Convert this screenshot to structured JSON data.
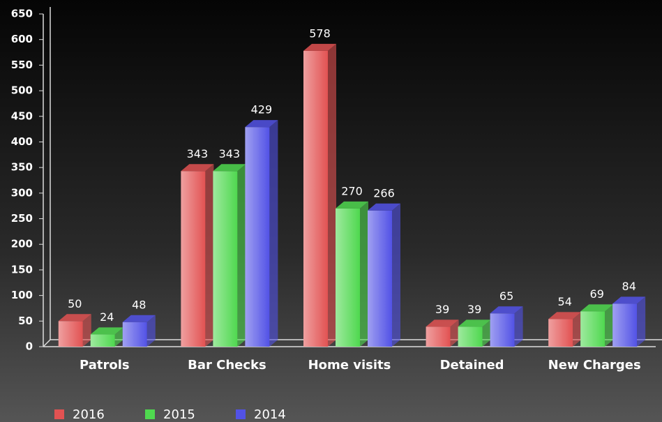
{
  "chart_data": {
    "type": "bar3d",
    "categories": [
      "Patrols",
      "Bar Checks",
      "Home visits",
      "Detained",
      "New Charges"
    ],
    "series": [
      {
        "name": "2016",
        "color": "#e25252",
        "values": [
          50,
          343,
          578,
          39,
          54
        ]
      },
      {
        "name": "2015",
        "color": "#4fd84f",
        "values": [
          24,
          343,
          270,
          39,
          69
        ]
      },
      {
        "name": "2014",
        "color": "#5252e6",
        "values": [
          48,
          429,
          266,
          65,
          84
        ]
      }
    ],
    "ylim": [
      0,
      650
    ],
    "yticks": [
      0,
      50,
      100,
      150,
      200,
      250,
      300,
      350,
      400,
      450,
      500,
      550,
      600,
      650
    ],
    "legend": "bottom-left"
  }
}
